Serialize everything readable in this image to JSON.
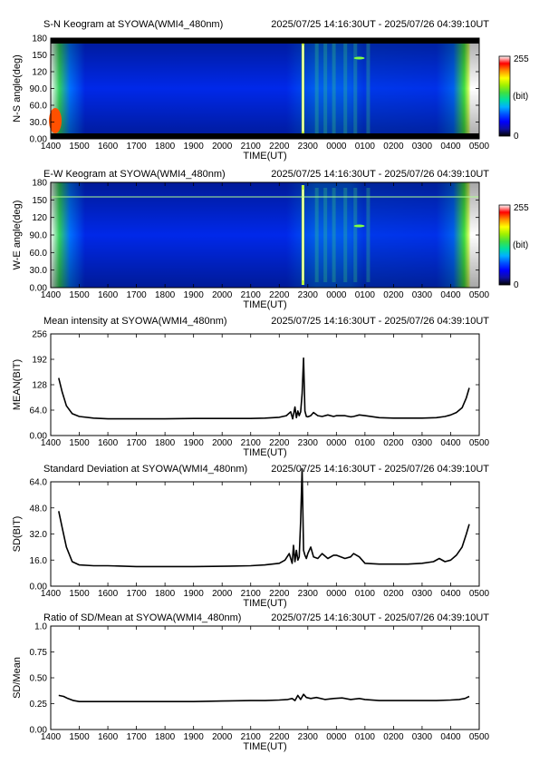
{
  "chart_data": [
    {
      "type": "heatmap",
      "title": "S-N Keogram at SYOWA(WMI4_480nm)",
      "time_range": "2025/07/25 14:16:30UT - 2025/07/26 04:39:10UT",
      "xlabel": "TIME(UT)",
      "ylabel": "N-S angle(deg)",
      "x_ticks": [
        "1400",
        "1500",
        "1600",
        "1700",
        "1800",
        "1900",
        "2000",
        "2100",
        "2200",
        "2300",
        "0000",
        "0100",
        "0200",
        "0300",
        "0400",
        "0500"
      ],
      "y_ticks": [
        "0.00",
        "30.0",
        "60.0",
        "90.0",
        "120",
        "150",
        "180"
      ],
      "ylim": [
        0,
        180
      ],
      "colorbar": {
        "min": "0",
        "max": "255",
        "unit": "(bit)"
      },
      "colormap": [
        "#000000",
        "#1010a0",
        "#0000ff",
        "#0050ff",
        "#00b0ff",
        "#00e0a0",
        "#40e040",
        "#a0f000",
        "#ffff00",
        "#ff9000",
        "#ff0000",
        "#ffffff"
      ]
    },
    {
      "type": "heatmap",
      "title": "E-W Keogram at SYOWA(WMI4_480nm)",
      "time_range": "2025/07/25 14:16:30UT - 2025/07/26 04:39:10UT",
      "xlabel": "TIME(UT)",
      "ylabel": "W-E angle(deg)",
      "x_ticks": [
        "1400",
        "1500",
        "1600",
        "1700",
        "1800",
        "1900",
        "2000",
        "2100",
        "2200",
        "2300",
        "0000",
        "0100",
        "0200",
        "0300",
        "0400",
        "0500"
      ],
      "y_ticks": [
        "0.00",
        "30.0",
        "60.0",
        "90.0",
        "120",
        "150",
        "180"
      ],
      "ylim": [
        0,
        180
      ],
      "colorbar": {
        "min": "0",
        "max": "255",
        "unit": "(bit)"
      }
    },
    {
      "type": "line",
      "title": "Mean intensity at SYOWA(WMI4_480nm)",
      "time_range": "2025/07/25 14:16:30UT - 2025/07/26 04:39:10UT",
      "xlabel": "TIME(UT)",
      "ylabel": "MEAN(BIT)",
      "x_ticks": [
        "1400",
        "1500",
        "1600",
        "1700",
        "1800",
        "1900",
        "2000",
        "2100",
        "2200",
        "2300",
        "0000",
        "0100",
        "0200",
        "0300",
        "0400",
        "0500"
      ],
      "y_ticks": [
        "0.00",
        "64.0",
        "128",
        "192",
        "256"
      ],
      "ylim": [
        0,
        256
      ],
      "xlim": [
        0,
        15
      ],
      "x": [
        0.28,
        0.4,
        0.55,
        0.75,
        1.0,
        1.5,
        2.0,
        3.0,
        4.0,
        5.0,
        6.0,
        7.0,
        7.5,
        8.0,
        8.25,
        8.4,
        8.47,
        8.55,
        8.6,
        8.65,
        8.7,
        8.75,
        8.8,
        8.85,
        8.9,
        8.95,
        9.0,
        9.1,
        9.2,
        9.35,
        9.5,
        9.7,
        9.9,
        10.0,
        10.3,
        10.5,
        10.6,
        10.8,
        11.0,
        11.5,
        12.0,
        12.5,
        13.0,
        13.5,
        13.8,
        14.0,
        14.2,
        14.4,
        14.55,
        14.65
      ],
      "y": [
        145,
        110,
        75,
        55,
        48,
        44,
        42,
        42,
        42,
        43,
        43,
        43,
        44,
        46,
        50,
        60,
        42,
        72,
        45,
        62,
        50,
        60,
        105,
        195,
        62,
        48,
        47,
        50,
        58,
        50,
        48,
        52,
        48,
        50,
        50,
        47,
        48,
        52,
        50,
        45,
        44,
        44,
        44,
        45,
        48,
        52,
        58,
        70,
        95,
        120
      ]
    },
    {
      "type": "line",
      "title": "Standard Deviation at SYOWA(WMI4_480nm)",
      "time_range": "2025/07/25 14:16:30UT - 2025/07/26 04:39:10UT",
      "xlabel": "TIME(UT)",
      "ylabel": "SD(BIT)",
      "x_ticks": [
        "1400",
        "1500",
        "1600",
        "1700",
        "1800",
        "1900",
        "2000",
        "2100",
        "2200",
        "2300",
        "0000",
        "0100",
        "0200",
        "0300",
        "0400",
        "0500"
      ],
      "y_ticks": [
        "0.00",
        "16.0",
        "32.0",
        "48.0",
        "64.0"
      ],
      "ylim": [
        0,
        64
      ],
      "xlim": [
        0,
        15
      ],
      "x": [
        0.28,
        0.4,
        0.55,
        0.75,
        1.0,
        1.5,
        2.0,
        3.0,
        4.0,
        5.0,
        6.0,
        7.0,
        7.5,
        8.0,
        8.2,
        8.35,
        8.45,
        8.5,
        8.55,
        8.6,
        8.65,
        8.7,
        8.75,
        8.8,
        8.85,
        8.9,
        8.95,
        9.0,
        9.1,
        9.2,
        9.35,
        9.5,
        9.7,
        9.9,
        10.0,
        10.3,
        10.5,
        10.6,
        10.8,
        11.0,
        11.5,
        12.0,
        12.5,
        13.0,
        13.4,
        13.6,
        13.8,
        14.0,
        14.2,
        14.4,
        14.55,
        14.65
      ],
      "y": [
        46,
        36,
        24,
        15,
        13,
        12.5,
        12.5,
        12,
        12,
        12,
        12.2,
        12.5,
        13,
        14,
        16,
        20,
        14,
        25,
        15,
        22,
        16,
        18,
        40,
        72,
        22,
        19,
        17,
        20,
        24,
        18,
        17,
        20,
        17,
        19,
        19,
        17,
        18,
        20,
        18,
        14,
        13.5,
        13.5,
        13.5,
        14,
        15,
        17,
        15,
        16,
        19,
        24,
        32,
        38
      ]
    },
    {
      "type": "line",
      "title": "Ratio of SD/Mean at SYOWA(WMI4_480nm)",
      "time_range": "2025/07/25 14:16:30UT - 2025/07/26 04:39:10UT",
      "xlabel": "TIME(UT)",
      "ylabel": "SD/Mean",
      "x_ticks": [
        "1400",
        "1500",
        "1600",
        "1700",
        "1800",
        "1900",
        "2000",
        "2100",
        "2200",
        "2300",
        "0000",
        "0100",
        "0200",
        "0300",
        "0400",
        "0500"
      ],
      "y_ticks": [
        "0.00",
        "0.25",
        "0.50",
        "0.75",
        "1.0"
      ],
      "ylim": [
        0,
        1.0
      ],
      "xlim": [
        0,
        15
      ],
      "x": [
        0.28,
        0.45,
        0.6,
        0.8,
        1.0,
        1.5,
        2.0,
        3.0,
        4.0,
        5.0,
        6.0,
        7.0,
        7.5,
        8.0,
        8.3,
        8.45,
        8.55,
        8.65,
        8.75,
        8.85,
        8.95,
        9.1,
        9.3,
        9.6,
        9.9,
        10.2,
        10.5,
        10.8,
        11.0,
        11.5,
        12.0,
        12.5,
        13.0,
        13.5,
        14.0,
        14.3,
        14.5,
        14.65
      ],
      "y": [
        0.33,
        0.32,
        0.3,
        0.28,
        0.27,
        0.27,
        0.27,
        0.27,
        0.27,
        0.27,
        0.275,
        0.28,
        0.28,
        0.285,
        0.29,
        0.3,
        0.28,
        0.33,
        0.29,
        0.34,
        0.31,
        0.3,
        0.31,
        0.29,
        0.3,
        0.305,
        0.29,
        0.3,
        0.29,
        0.28,
        0.28,
        0.28,
        0.28,
        0.28,
        0.285,
        0.29,
        0.3,
        0.32
      ]
    }
  ]
}
